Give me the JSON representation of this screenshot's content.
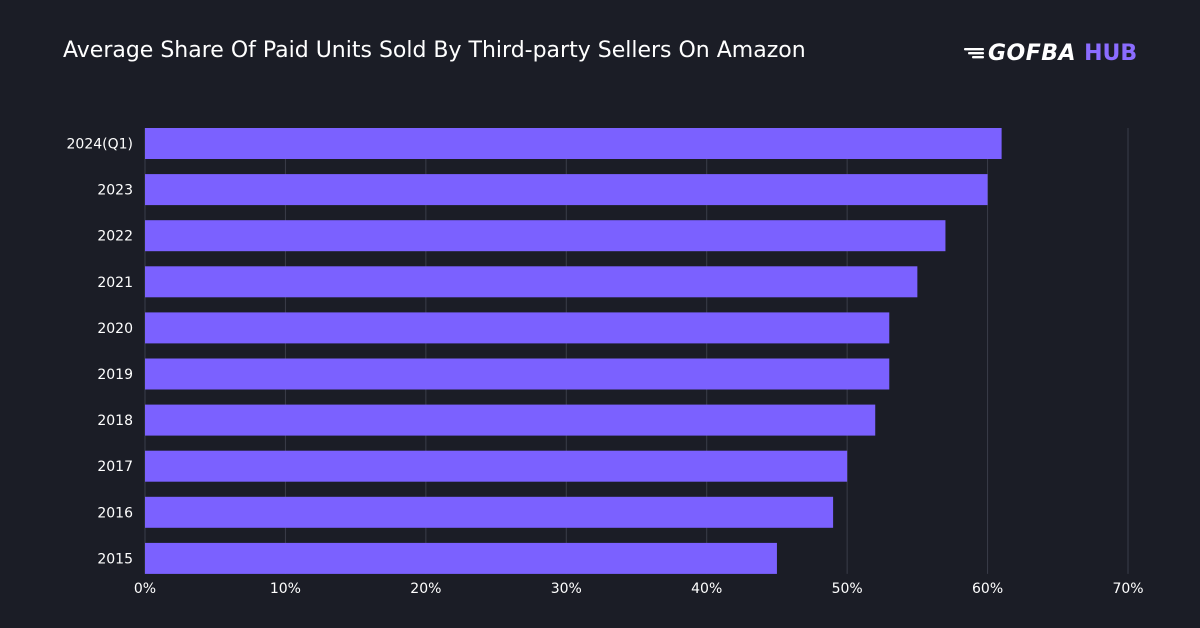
{
  "header": {
    "title": "Average Share Of Paid Units Sold By Third-party Sellers On Amazon"
  },
  "logo": {
    "word": "GOFBA",
    "accent": "HUB",
    "accent_color": "#8b6cff"
  },
  "colors": {
    "background": "#1b1d26",
    "bar": "#7b61ff",
    "grid": "#3a3d49",
    "text": "#ffffff"
  },
  "chart_data": {
    "type": "bar",
    "orientation": "horizontal",
    "title": "Average Share Of Paid Units Sold By Third-party Sellers On Amazon",
    "xlabel": "",
    "ylabel": "",
    "categories": [
      "2024(Q1)",
      "2023",
      "2022",
      "2021",
      "2020",
      "2019",
      "2018",
      "2017",
      "2016",
      "2015"
    ],
    "values": [
      61,
      60,
      57,
      55,
      53,
      53,
      52,
      50,
      49,
      45
    ],
    "unit": "%",
    "xlim": [
      0,
      70
    ],
    "xticks": [
      "0%",
      "10%",
      "20%",
      "30%",
      "40%",
      "50%",
      "60%",
      "70%"
    ],
    "grid": true,
    "legend": "none"
  }
}
